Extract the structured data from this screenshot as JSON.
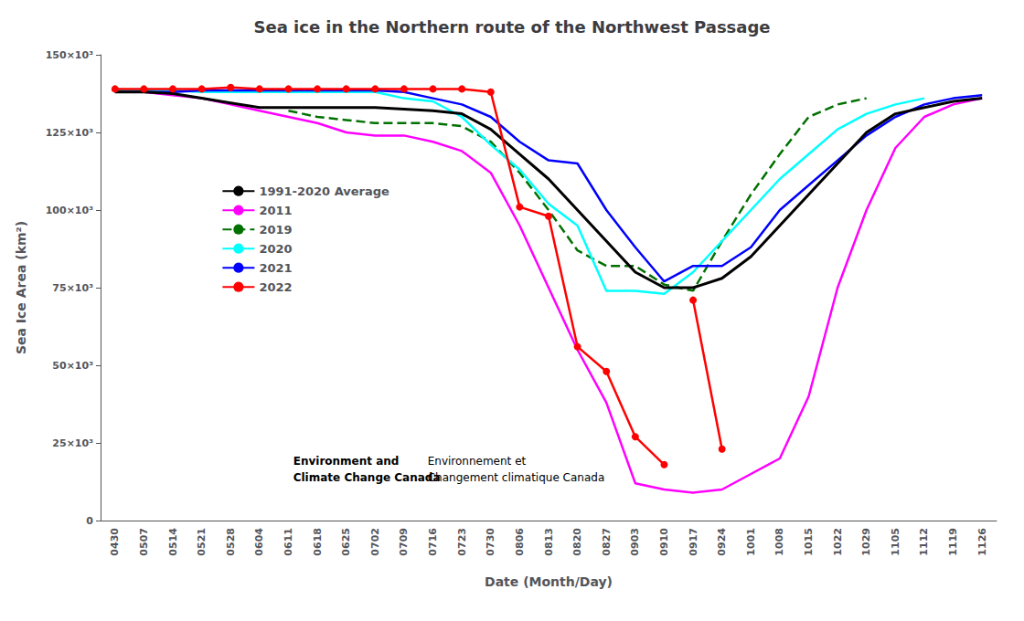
{
  "chart_data": {
    "type": "line",
    "title": "Sea ice in the Northern route of the Northwest Passage",
    "xlabel": "Date (Month/Day)",
    "ylabel": "Sea Ice Area (km²)",
    "categories": [
      "0430",
      "0507",
      "0514",
      "0521",
      "0528",
      "0604",
      "0611",
      "0618",
      "0625",
      "0702",
      "0709",
      "0716",
      "0723",
      "0730",
      "0806",
      "0813",
      "0820",
      "0827",
      "0903",
      "0910",
      "0917",
      "0924",
      "1001",
      "1008",
      "1015",
      "1022",
      "1029",
      "1105",
      "1112",
      "1119",
      "1126"
    ],
    "ylim": [
      0,
      150000
    ],
    "yticks": [
      0,
      {
        "value": 25000,
        "label": "25×10³"
      },
      {
        "value": 50000,
        "label": "50×10³"
      },
      {
        "value": 75000,
        "label": "75×10³"
      },
      {
        "value": 100000,
        "label": "100×10³"
      },
      {
        "value": 125000,
        "label": "125×10³"
      },
      {
        "value": 150000,
        "label": "150×10³"
      }
    ],
    "grid": false,
    "legend": "upper left",
    "series": [
      {
        "name": "1991-2020 Average",
        "color": "#000000",
        "values": [
          138000,
          138000,
          137500,
          136000,
          134500,
          133000,
          133000,
          133000,
          133000,
          133000,
          132500,
          132000,
          131000,
          126000,
          118000,
          110000,
          100000,
          90000,
          80000,
          75000,
          75000,
          78000,
          85000,
          95000,
          105000,
          115000,
          125000,
          131000,
          133000,
          135000,
          136000
        ]
      },
      {
        "name": "2011",
        "color": "#FF00FF",
        "values": [
          138000,
          138000,
          137000,
          136000,
          134000,
          132000,
          130000,
          128000,
          125000,
          124000,
          124000,
          122000,
          119000,
          112000,
          95000,
          75000,
          55000,
          38000,
          12000,
          10000,
          9000,
          10000,
          15000,
          20000,
          40000,
          75000,
          100000,
          120000,
          130000,
          134000,
          136000
        ]
      },
      {
        "name": "2019",
        "color": "#007000",
        "line_style": "dashed",
        "values": [
          null,
          null,
          null,
          null,
          null,
          null,
          132000,
          130000,
          129000,
          128000,
          128000,
          128000,
          127000,
          122000,
          112000,
          100000,
          87000,
          82000,
          82000,
          76000,
          74000,
          90000,
          105000,
          118000,
          130000,
          134000,
          136000,
          null,
          null,
          null,
          null
        ]
      },
      {
        "name": "2020",
        "color": "#00FFFF",
        "values": [
          138500,
          138500,
          138500,
          138000,
          138000,
          138000,
          138000,
          138000,
          138000,
          138000,
          136000,
          135000,
          130000,
          121000,
          113000,
          102000,
          95000,
          74000,
          74000,
          73000,
          80000,
          90000,
          100000,
          110000,
          118000,
          126000,
          131000,
          134000,
          136000,
          null,
          null
        ]
      },
      {
        "name": "2021",
        "color": "#0000FF",
        "values": [
          138000,
          138000,
          138000,
          138500,
          138500,
          138500,
          138500,
          138500,
          138500,
          138500,
          138000,
          136000,
          134000,
          130000,
          122000,
          116000,
          115000,
          100000,
          88000,
          77000,
          82000,
          82000,
          88000,
          100000,
          108000,
          116000,
          124000,
          130000,
          134000,
          136000,
          137000
        ]
      },
      {
        "name": "2022",
        "color": "#FF0000",
        "marker": "circle",
        "values": [
          139000,
          139000,
          139000,
          139000,
          139500,
          139000,
          139000,
          139000,
          139000,
          139000,
          139000,
          139000,
          139000,
          138000,
          101000,
          98000,
          56000,
          48000,
          27000,
          18000,
          null,
          null,
          null,
          null,
          null,
          null,
          null,
          null,
          null,
          null,
          null
        ]
      },
      {
        "name": "2022",
        "color": "#FF0000",
        "marker": "circle",
        "values": [
          null,
          null,
          null,
          null,
          null,
          null,
          null,
          null,
          null,
          null,
          null,
          null,
          null,
          null,
          null,
          null,
          null,
          null,
          null,
          null,
          71000,
          23000,
          null,
          null,
          null,
          null,
          null,
          null,
          null,
          null,
          null
        ]
      }
    ],
    "annotations": [
      "Environment and",
      "Climate Change Canada",
      "Environnement et",
      "Changement climatique Canada"
    ]
  }
}
